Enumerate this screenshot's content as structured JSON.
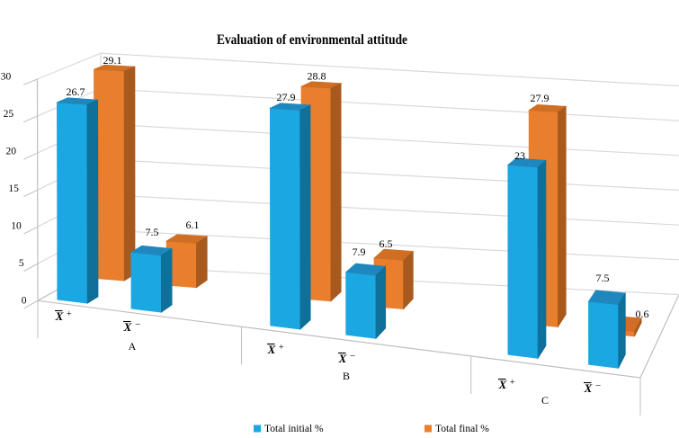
{
  "chart_data": {
    "type": "bar",
    "variant": "3d-column",
    "title": "Evaluation of environmental attitude",
    "groups": [
      "A",
      "B",
      "C"
    ],
    "category_labels": [
      {
        "symbol": "X",
        "overbar": true,
        "sign": "+"
      },
      {
        "symbol": "X",
        "overbar": true,
        "sign": "-"
      },
      {
        "symbol": "X",
        "overbar": true,
        "sign": "+"
      },
      {
        "symbol": "X",
        "overbar": true,
        "sign": "-"
      },
      {
        "symbol": "X",
        "overbar": true,
        "sign": "+"
      },
      {
        "symbol": "X",
        "overbar": true,
        "sign": "-"
      }
    ],
    "series": [
      {
        "name": "Total initial %",
        "values": [
          26.7,
          7.5,
          27.9,
          7.9,
          23,
          7.5
        ]
      },
      {
        "name": "Total final %",
        "values": [
          29.1,
          6.1,
          28.8,
          6.5,
          27.9,
          0.6
        ]
      }
    ],
    "data_labels": [
      "26.7",
      "7.5",
      "27.9",
      "7.9",
      "23",
      "7.5",
      "29.1",
      "6.1",
      "28.8",
      "6.5",
      "27.9",
      "0.6"
    ],
    "ylim": [
      0,
      30
    ],
    "ytick_step": 5,
    "yticks": [
      "0",
      "5",
      "10",
      "15",
      "20",
      "25",
      "30"
    ],
    "grid": true,
    "legend_position": "bottom",
    "colors": {
      "initial": {
        "front": "#1BA7E2",
        "top": "#1E87BD",
        "side": "#0F7099"
      },
      "final": {
        "front": "#E97F2D",
        "top": "#D06F24",
        "side": "#A85A1E"
      },
      "gridline": "#D9D9D9",
      "axis_line": "#BFBFBF",
      "text": "#000000"
    }
  }
}
